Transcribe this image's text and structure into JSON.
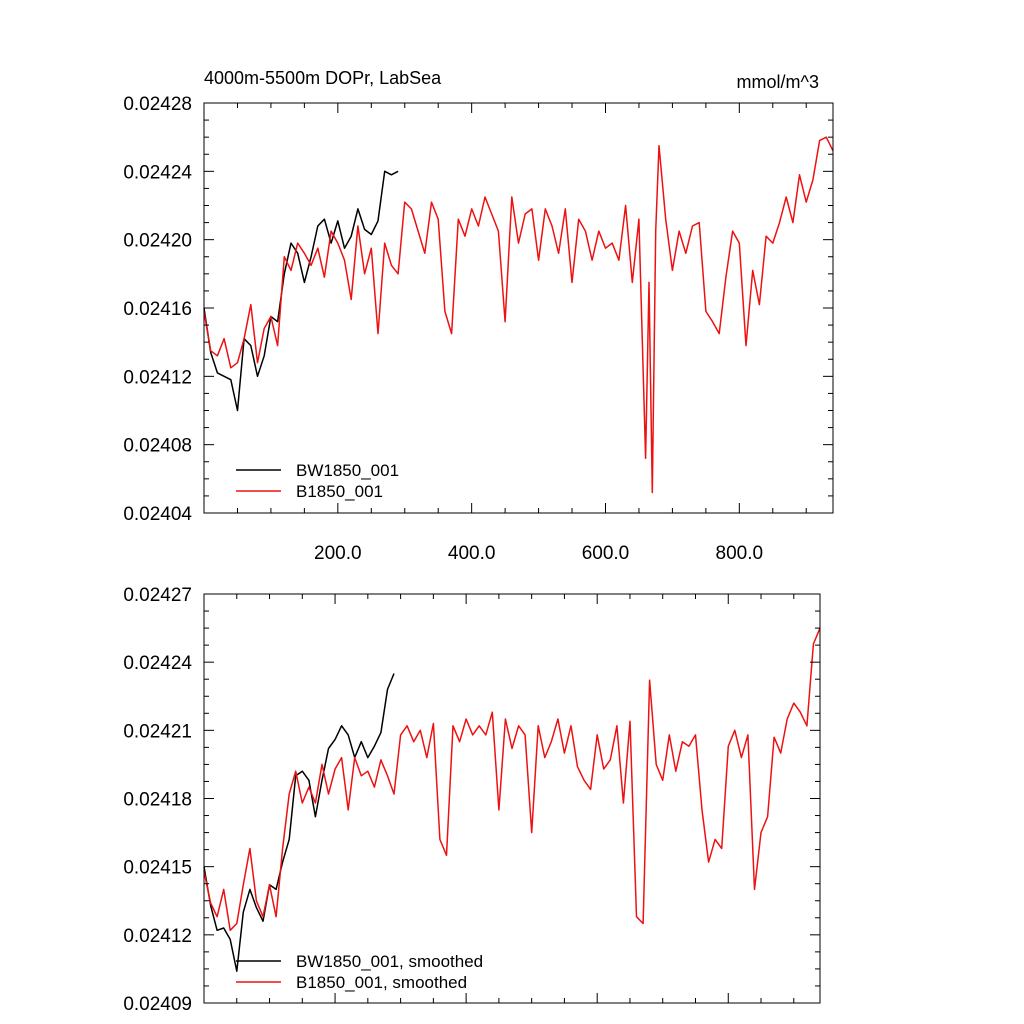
{
  "chart_data": [
    {
      "type": "line",
      "title_left": "4000m-5500m DOPr, LabSea",
      "title_right": "mmol/m^3",
      "xlim": [
        0,
        940
      ],
      "ylim": [
        0.02404,
        0.02428
      ],
      "xticks": [
        200,
        400,
        600,
        800
      ],
      "xtick_labels": [
        "200.0",
        "400.0",
        "600.0",
        "800.0"
      ],
      "show_xtick_labels": true,
      "yticks": [
        0.02404,
        0.02408,
        0.02412,
        0.02416,
        0.0242,
        0.02424,
        0.02428
      ],
      "ytick_labels": [
        "0.02404",
        "0.02408",
        "0.02412",
        "0.02416",
        "0.02420",
        "0.02424",
        "0.02428"
      ],
      "legend_position": "bottom-left",
      "series": [
        {
          "name": "BW1850_001",
          "color": "#000000",
          "x": [
            0,
            10,
            20,
            30,
            40,
            50,
            60,
            70,
            80,
            90,
            100,
            110,
            120,
            130,
            140,
            150,
            160,
            170,
            180,
            190,
            200,
            210,
            220,
            230,
            240,
            250,
            260,
            270,
            280,
            290
          ],
          "y": [
            0.02416,
            0.024134,
            0.024122,
            0.02412,
            0.024118,
            0.0241,
            0.024142,
            0.024138,
            0.02412,
            0.024132,
            0.024155,
            0.024152,
            0.02418,
            0.024198,
            0.024192,
            0.024175,
            0.02419,
            0.024208,
            0.024212,
            0.024198,
            0.024211,
            0.024195,
            0.024202,
            0.024218,
            0.024206,
            0.024203,
            0.024211,
            0.02424,
            0.024238,
            0.02424
          ]
        },
        {
          "name": "B1850_001",
          "color": "#ee1111",
          "x": [
            0,
            10,
            20,
            30,
            40,
            50,
            60,
            70,
            80,
            90,
            100,
            110,
            120,
            130,
            140,
            150,
            160,
            170,
            180,
            190,
            200,
            210,
            220,
            230,
            240,
            250,
            260,
            270,
            280,
            290,
            300,
            310,
            320,
            330,
            340,
            350,
            360,
            370,
            380,
            390,
            400,
            410,
            420,
            430,
            440,
            450,
            460,
            470,
            480,
            490,
            500,
            510,
            520,
            530,
            540,
            550,
            560,
            570,
            580,
            590,
            600,
            610,
            620,
            630,
            640,
            650,
            660,
            665,
            670,
            675,
            680,
            690,
            700,
            710,
            720,
            730,
            740,
            750,
            760,
            770,
            780,
            790,
            800,
            810,
            820,
            830,
            840,
            850,
            860,
            870,
            880,
            890,
            900,
            910,
            920,
            930,
            940
          ],
          "y": [
            0.024158,
            0.024135,
            0.024132,
            0.024142,
            0.024125,
            0.024128,
            0.024142,
            0.024162,
            0.024128,
            0.024148,
            0.024155,
            0.024138,
            0.02419,
            0.024182,
            0.024198,
            0.024192,
            0.024185,
            0.024195,
            0.024178,
            0.024205,
            0.024198,
            0.024188,
            0.024165,
            0.024208,
            0.02418,
            0.024195,
            0.024145,
            0.024198,
            0.024185,
            0.02418,
            0.024222,
            0.024218,
            0.024205,
            0.024192,
            0.024222,
            0.024212,
            0.024158,
            0.024145,
            0.024212,
            0.024202,
            0.024218,
            0.024208,
            0.024225,
            0.024215,
            0.024205,
            0.024152,
            0.024225,
            0.024198,
            0.024215,
            0.024218,
            0.024188,
            0.024218,
            0.024208,
            0.024192,
            0.024218,
            0.024175,
            0.024212,
            0.024205,
            0.024188,
            0.024205,
            0.024195,
            0.024198,
            0.024188,
            0.02422,
            0.024175,
            0.024212,
            0.024072,
            0.024175,
            0.024052,
            0.024205,
            0.024255,
            0.024212,
            0.024182,
            0.024205,
            0.024192,
            0.024208,
            0.02421,
            0.024158,
            0.024152,
            0.024145,
            0.024178,
            0.024205,
            0.024198,
            0.024138,
            0.024182,
            0.024162,
            0.024202,
            0.024198,
            0.02421,
            0.024225,
            0.02421,
            0.024238,
            0.024222,
            0.024235,
            0.024258,
            0.02426,
            0.024252
          ]
        }
      ]
    },
    {
      "type": "line",
      "xlim": [
        0,
        940
      ],
      "ylim": [
        0.02409,
        0.02427
      ],
      "xticks": [
        200,
        400,
        600,
        800
      ],
      "xtick_labels": [],
      "show_xtick_labels": false,
      "yticks": [
        0.02409,
        0.02412,
        0.02415,
        0.02418,
        0.02421,
        0.02424,
        0.02427
      ],
      "ytick_labels": [
        "0.02409",
        "0.02412",
        "0.02415",
        "0.02418",
        "0.02421",
        "0.02424",
        "0.02427"
      ],
      "legend_position": "bottom-left",
      "series": [
        {
          "name": "BW1850_001, smoothed",
          "color": "#000000",
          "x": [
            0,
            10,
            20,
            30,
            40,
            50,
            60,
            70,
            80,
            90,
            100,
            110,
            120,
            130,
            140,
            150,
            160,
            170,
            180,
            190,
            200,
            210,
            220,
            230,
            240,
            250,
            260,
            270,
            280,
            290
          ],
          "y": [
            0.02415,
            0.024133,
            0.024122,
            0.024123,
            0.024118,
            0.024104,
            0.02413,
            0.02414,
            0.024132,
            0.024126,
            0.024142,
            0.02414,
            0.024152,
            0.024162,
            0.02419,
            0.024192,
            0.024188,
            0.024172,
            0.024188,
            0.024202,
            0.024206,
            0.024212,
            0.024208,
            0.024198,
            0.024205,
            0.024198,
            0.024203,
            0.024209,
            0.024228,
            0.024235
          ]
        },
        {
          "name": "B1850_001, smoothed",
          "color": "#ee1111",
          "x": [
            0,
            10,
            20,
            30,
            40,
            50,
            60,
            70,
            80,
            90,
            100,
            110,
            120,
            130,
            140,
            150,
            160,
            170,
            180,
            190,
            200,
            210,
            220,
            230,
            240,
            250,
            260,
            270,
            280,
            290,
            300,
            310,
            320,
            330,
            340,
            350,
            360,
            370,
            380,
            390,
            400,
            410,
            420,
            430,
            440,
            450,
            460,
            470,
            480,
            490,
            500,
            510,
            520,
            530,
            540,
            550,
            560,
            570,
            580,
            590,
            600,
            610,
            620,
            630,
            640,
            650,
            660,
            670,
            680,
            690,
            700,
            710,
            720,
            730,
            740,
            750,
            760,
            770,
            780,
            790,
            800,
            810,
            820,
            830,
            840,
            850,
            860,
            870,
            880,
            890,
            900,
            910,
            920,
            930,
            940
          ],
          "y": [
            0.024148,
            0.024134,
            0.024128,
            0.02414,
            0.024122,
            0.024125,
            0.024142,
            0.024158,
            0.024135,
            0.024128,
            0.024142,
            0.024128,
            0.024158,
            0.024182,
            0.024192,
            0.024178,
            0.024185,
            0.024178,
            0.024195,
            0.024182,
            0.024193,
            0.024198,
            0.024175,
            0.024198,
            0.02419,
            0.024192,
            0.024185,
            0.024197,
            0.02419,
            0.024182,
            0.024208,
            0.024212,
            0.024205,
            0.02421,
            0.024198,
            0.024213,
            0.024162,
            0.024155,
            0.024212,
            0.024205,
            0.024215,
            0.024208,
            0.024212,
            0.024208,
            0.024218,
            0.024175,
            0.024215,
            0.024202,
            0.024212,
            0.024208,
            0.024165,
            0.024212,
            0.024198,
            0.024205,
            0.024215,
            0.0242,
            0.024212,
            0.024194,
            0.024188,
            0.024184,
            0.024208,
            0.024193,
            0.024197,
            0.024212,
            0.024178,
            0.024214,
            0.024128,
            0.024125,
            0.024232,
            0.024195,
            0.024188,
            0.024208,
            0.024192,
            0.024205,
            0.024203,
            0.024208,
            0.024175,
            0.024152,
            0.024162,
            0.024158,
            0.024203,
            0.02421,
            0.024198,
            0.024208,
            0.02414,
            0.024165,
            0.024172,
            0.024207,
            0.0242,
            0.024215,
            0.024222,
            0.024218,
            0.024212,
            0.024248,
            0.024255
          ]
        }
      ]
    }
  ]
}
